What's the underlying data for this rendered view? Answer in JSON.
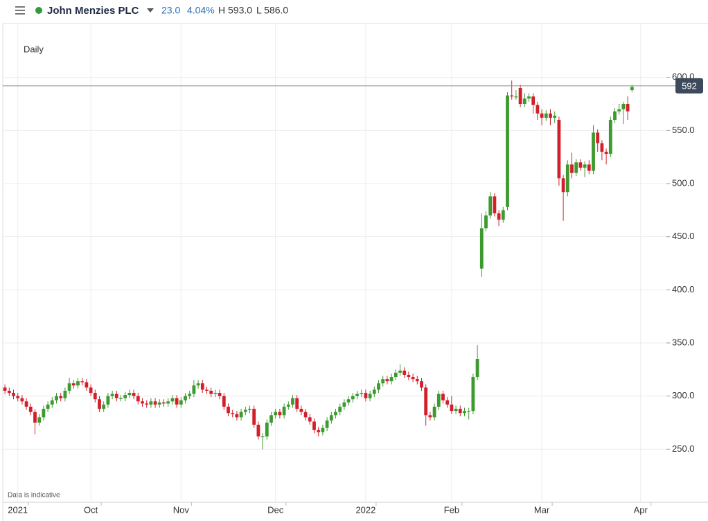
{
  "header": {
    "title": "John Menzies PLC",
    "change": "23.0",
    "change_pct": "4.04%",
    "high": "H 593.0",
    "low": "L 586.0"
  },
  "chart_data": {
    "type": "candlestick",
    "interval": "Daily",
    "note": "Data is indicative",
    "up_color": "#3c9a2f",
    "down_color": "#d2202b",
    "grid": true,
    "ylim": [
      200,
      650
    ],
    "yticks": [
      {
        "value": 250,
        "label": "250.0"
      },
      {
        "value": 300,
        "label": "300.0"
      },
      {
        "value": 350,
        "label": "350.0"
      },
      {
        "value": 400,
        "label": "400.0"
      },
      {
        "value": 450,
        "label": "450.0"
      },
      {
        "value": 500,
        "label": "500.0"
      },
      {
        "value": 550,
        "label": "550.0"
      },
      {
        "value": 600,
        "label": "600.0"
      }
    ],
    "last_price": 592,
    "categories": [
      null,
      null,
      null,
      "2021",
      null,
      null,
      null,
      null,
      null,
      null,
      null,
      null,
      null,
      null,
      null,
      null,
      null,
      null,
      null,
      null,
      "Oct",
      null,
      null,
      null,
      null,
      null,
      null,
      null,
      null,
      null,
      null,
      null,
      null,
      null,
      null,
      null,
      null,
      null,
      null,
      null,
      null,
      "Nov",
      null,
      null,
      null,
      null,
      null,
      null,
      null,
      null,
      null,
      null,
      null,
      null,
      null,
      null,
      null,
      null,
      null,
      null,
      null,
      null,
      null,
      "Dec",
      null,
      null,
      null,
      null,
      null,
      null,
      null,
      null,
      null,
      null,
      null,
      null,
      null,
      null,
      null,
      null,
      null,
      null,
      null,
      null,
      "2022",
      null,
      null,
      null,
      null,
      null,
      null,
      null,
      null,
      null,
      null,
      null,
      null,
      null,
      null,
      null,
      null,
      null,
      null,
      null,
      "Feb",
      null,
      null,
      null,
      null,
      null,
      null,
      null,
      null,
      null,
      null,
      null,
      null,
      null,
      null,
      null,
      null,
      null,
      null,
      null,
      null,
      "Mar",
      null,
      null,
      null,
      null,
      null,
      null,
      null,
      null,
      null,
      null,
      null,
      null,
      null,
      null,
      null,
      null,
      null,
      null,
      null,
      null,
      null,
      null,
      "Apr"
    ],
    "open": [
      308,
      305,
      303,
      300,
      298,
      295,
      290,
      285,
      275,
      280,
      288,
      292,
      296,
      300,
      298,
      305,
      312,
      310,
      314,
      313,
      308,
      303,
      297,
      288,
      292,
      300,
      302,
      298,
      298,
      301,
      303,
      300,
      295,
      293,
      292,
      295,
      292,
      294,
      293,
      295,
      298,
      292,
      296,
      300,
      302,
      310,
      312,
      306,
      305,
      302,
      303,
      300,
      290,
      284,
      283,
      280,
      285,
      287,
      288,
      273,
      262,
      262,
      275,
      282,
      285,
      282,
      290,
      292,
      298,
      288,
      285,
      280,
      276,
      268,
      266,
      270,
      277,
      282,
      285,
      290,
      294,
      297,
      300,
      302,
      303,
      298,
      302,
      306,
      312,
      316,
      314,
      318,
      322,
      324,
      320,
      318,
      316,
      314,
      308,
      282,
      280,
      290,
      302,
      296,
      292,
      286,
      288,
      284,
      286,
      286,
      318,
      420,
      458,
      470,
      488,
      472,
      466,
      478,
      583,
      582,
      590,
      575,
      580,
      582,
      574,
      566,
      562,
      566,
      562,
      560,
      505,
      492,
      518,
      510,
      520,
      515,
      518,
      512,
      548,
      538,
      530,
      528,
      560,
      568,
      570,
      575,
      588,
      null,
      null
    ],
    "high": [
      311,
      308,
      306,
      303,
      301,
      298,
      293,
      288,
      283,
      291,
      295,
      299,
      303,
      303,
      308,
      317,
      315,
      317,
      317,
      316,
      311,
      306,
      300,
      295,
      303,
      305,
      305,
      301,
      304,
      306,
      306,
      303,
      298,
      296,
      298,
      298,
      297,
      297,
      298,
      301,
      301,
      299,
      303,
      305,
      315,
      315,
      315,
      309,
      308,
      306,
      306,
      303,
      293,
      287,
      286,
      288,
      290,
      291,
      291,
      276,
      265,
      278,
      285,
      288,
      288,
      293,
      295,
      301,
      301,
      291,
      288,
      283,
      279,
      271,
      273,
      280,
      285,
      288,
      293,
      297,
      300,
      303,
      305,
      306,
      306,
      305,
      309,
      315,
      319,
      319,
      321,
      325,
      330,
      327,
      323,
      321,
      319,
      317,
      311,
      285,
      293,
      305,
      305,
      299,
      300,
      291,
      291,
      289,
      289,
      321,
      348,
      472,
      474,
      492,
      491,
      475,
      478,
      586,
      597,
      588,
      593,
      585,
      585,
      585,
      577,
      570,
      569,
      570,
      568,
      563,
      508,
      522,
      529,
      523,
      523,
      521,
      522,
      555,
      551,
      541,
      533,
      563,
      571,
      575,
      577,
      582,
      593,
      null,
      null
    ],
    "low": [
      302,
      300,
      297,
      295,
      292,
      287,
      282,
      264,
      272,
      277,
      285,
      289,
      293,
      295,
      295,
      302,
      307,
      307,
      310,
      305,
      300,
      294,
      285,
      285,
      289,
      297,
      295,
      295,
      295,
      298,
      297,
      292,
      290,
      289,
      289,
      289,
      289,
      290,
      290,
      292,
      289,
      289,
      293,
      297,
      299,
      307,
      303,
      302,
      299,
      299,
      297,
      287,
      281,
      280,
      277,
      277,
      282,
      284,
      270,
      259,
      250,
      259,
      272,
      279,
      279,
      279,
      287,
      289,
      285,
      282,
      277,
      273,
      265,
      262,
      263,
      267,
      274,
      279,
      282,
      287,
      291,
      294,
      297,
      299,
      295,
      295,
      299,
      303,
      309,
      311,
      311,
      315,
      319,
      317,
      315,
      313,
      311,
      305,
      272,
      277,
      277,
      287,
      293,
      289,
      283,
      283,
      281,
      281,
      278,
      283,
      315,
      412,
      455,
      467,
      469,
      460,
      463,
      475,
      579,
      579,
      572,
      572,
      577,
      566,
      560,
      555,
      559,
      555,
      557,
      498,
      465,
      488,
      505,
      507,
      512,
      506,
      509,
      509,
      530,
      522,
      518,
      525,
      557,
      565,
      556,
      560,
      586,
      null,
      null
    ],
    "close": [
      305,
      303,
      300,
      298,
      295,
      290,
      285,
      275,
      280,
      288,
      292,
      296,
      300,
      298,
      305,
      312,
      310,
      314,
      313,
      308,
      303,
      297,
      288,
      292,
      300,
      302,
      298,
      298,
      301,
      303,
      300,
      295,
      293,
      292,
      295,
      292,
      294,
      293,
      295,
      298,
      292,
      296,
      300,
      302,
      310,
      312,
      306,
      305,
      302,
      303,
      300,
      290,
      284,
      283,
      280,
      285,
      287,
      288,
      273,
      262,
      262,
      275,
      282,
      285,
      282,
      290,
      292,
      298,
      288,
      285,
      280,
      276,
      268,
      266,
      270,
      277,
      282,
      285,
      290,
      294,
      297,
      300,
      302,
      303,
      298,
      302,
      306,
      312,
      316,
      314,
      318,
      322,
      324,
      320,
      318,
      316,
      314,
      308,
      282,
      280,
      290,
      302,
      296,
      292,
      286,
      288,
      284,
      286,
      286,
      318,
      335,
      458,
      470,
      488,
      472,
      466,
      475,
      583,
      582,
      582,
      575,
      580,
      582,
      574,
      566,
      562,
      566,
      562,
      564,
      505,
      492,
      518,
      510,
      520,
      515,
      518,
      512,
      548,
      538,
      530,
      528,
      560,
      568,
      570,
      575,
      568,
      591,
      null,
      null
    ]
  }
}
